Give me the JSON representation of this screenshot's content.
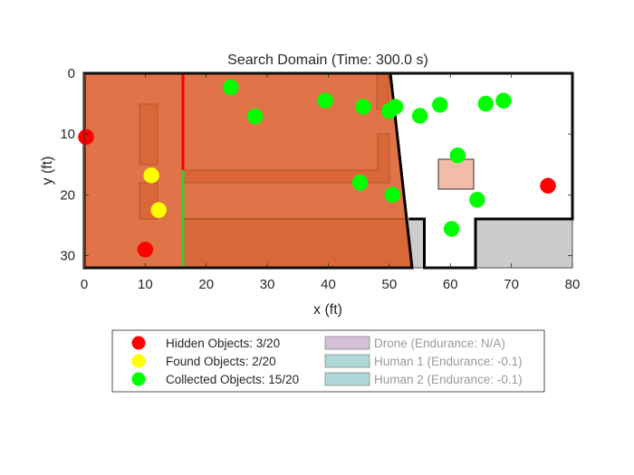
{
  "chart_data": {
    "type": "scatter",
    "title": "Search Domain (Time: 300.0 s)",
    "xlabel": "x (ft)",
    "ylabel": "y (ft)",
    "xlim": [
      0,
      80
    ],
    "ylim": [
      0,
      32
    ],
    "y_axis_reversed": true,
    "xticks": [
      "0",
      "10",
      "20",
      "30",
      "40",
      "50",
      "60",
      "70",
      "80"
    ],
    "yticks": [
      "0",
      "10",
      "20",
      "30"
    ],
    "colors": {
      "searched_area": "#E07347",
      "hidden": "#FF0000",
      "found": "#FFFF00",
      "collected": "#00FF00",
      "unsearchable": "#CCCCCC",
      "drone_patch": "#D8BFD8",
      "human_patch": "#B0D8D8",
      "wall": "#000000"
    },
    "series": [
      {
        "name": "Hidden Objects: 3/20",
        "color": "#FF0000",
        "points": [
          [
            0.3,
            10.5
          ],
          [
            10,
            29
          ],
          [
            76,
            18.5
          ]
        ]
      },
      {
        "name": "Found Objects: 2/20",
        "color": "#FFFF00",
        "points": [
          [
            11,
            16.8
          ],
          [
            12.2,
            22.5
          ]
        ]
      },
      {
        "name": "Collected Objects: 15/20",
        "color": "#00FF00",
        "points": [
          [
            24,
            2.3
          ],
          [
            28,
            7.1
          ],
          [
            39.5,
            4.5
          ],
          [
            45.7,
            5.5
          ],
          [
            50,
            6.2
          ],
          [
            51,
            5.5
          ],
          [
            55,
            7
          ],
          [
            58.3,
            5.2
          ],
          [
            65.8,
            5
          ],
          [
            68.7,
            4.5
          ],
          [
            61.2,
            13.5
          ],
          [
            45.2,
            18
          ],
          [
            50.5,
            20
          ],
          [
            64.4,
            20.8
          ],
          [
            60.2,
            25.6
          ]
        ]
      }
    ],
    "legend": {
      "placement": "bottom-center",
      "items": [
        {
          "label": "Hidden Objects: 3/20",
          "type": "marker",
          "color": "#FF0000",
          "active": true
        },
        {
          "label": "Found Objects: 2/20",
          "type": "marker",
          "color": "#FFFF00",
          "active": true
        },
        {
          "label": "Collected Objects: 15/20",
          "type": "marker",
          "color": "#00FF00",
          "active": true
        },
        {
          "label": "Drone (Endurance: N/A)",
          "type": "patch",
          "color": "#D8BFD8",
          "active": false
        },
        {
          "label": "Human 1 (Endurance: -0.1)",
          "type": "patch",
          "color": "#B0D8D8",
          "active": false
        },
        {
          "label": "Human 2 (Endurance: -0.1)",
          "type": "patch",
          "color": "#B0D8D8",
          "active": false
        }
      ]
    }
  }
}
